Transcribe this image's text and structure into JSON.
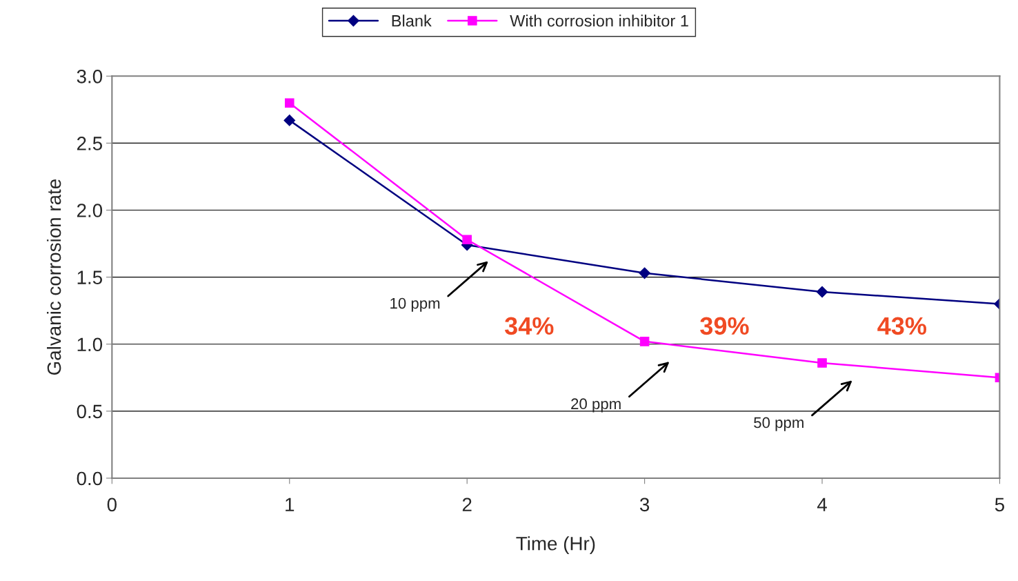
{
  "chart_data": {
    "type": "line",
    "xlabel": "Time (Hr)",
    "ylabel": "Galvanic corrosion rate",
    "x": [
      1,
      2,
      3,
      4,
      5
    ],
    "series": [
      {
        "name": "Blank",
        "color": "#000080",
        "marker": "diamond",
        "values": [
          2.67,
          1.74,
          1.53,
          1.39,
          1.3
        ]
      },
      {
        "name": "With corrosion inhibitor 1",
        "color": "#ff00ff",
        "marker": "square",
        "values": [
          2.8,
          1.78,
          1.02,
          0.86,
          0.75
        ]
      }
    ],
    "xlim": [
      0,
      5
    ],
    "xticks": [
      0,
      1,
      2,
      3,
      4,
      5
    ],
    "ylim": [
      0,
      3
    ],
    "yticks": [
      {
        "value": 0,
        "label": "0.0"
      },
      {
        "value": 0.5,
        "label": "0.5"
      },
      {
        "value": 1,
        "label": "1.0"
      },
      {
        "value": 1.5,
        "label": "1.5"
      },
      {
        "value": 2,
        "label": "2.0"
      },
      {
        "value": 2.5,
        "label": "2.5"
      },
      {
        "value": 3,
        "label": "3.0"
      }
    ],
    "grid": "y",
    "legend": "top",
    "annotations": [
      "10 ppm",
      "20 ppm",
      "50 ppm",
      "34%",
      "39%",
      "43%"
    ]
  }
}
